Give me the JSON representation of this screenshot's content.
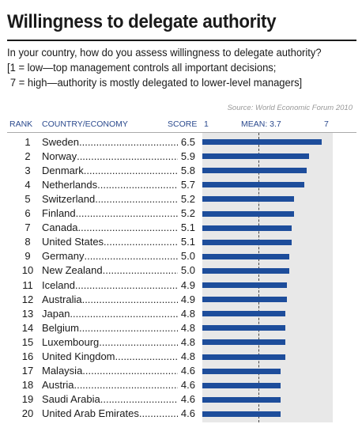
{
  "title": "Willingness to delegate authority",
  "question": [
    "In your country, how do you assess willingness to delegate authority?",
    "[1 = low—top management controls all important decisions;",
    "7 = high—authority is mostly delegated to lower-level managers]"
  ],
  "source": "Source: World Economic Forum 2010",
  "headers": {
    "rank": "RANK",
    "country": "COUNTRY/ECONOMY",
    "score": "SCORE",
    "min": "1",
    "mean": "MEAN: 3.7",
    "max": "7"
  },
  "colors": {
    "bar": "#1d4d9b",
    "panel": "#e8e8e8",
    "highlight": "#f5e100",
    "header": "#2b4a8e"
  },
  "chart_data": {
    "type": "bar",
    "orientation": "horizontal",
    "title": "Willingness to delegate authority",
    "xlim": [
      1,
      7
    ],
    "mean": 3.7,
    "categories": [
      "Sweden",
      "Norway",
      "Denmark",
      "Netherlands",
      "Switzerland",
      "Finland",
      "Canada",
      "United States",
      "Germany",
      "New Zealand",
      "Iceland",
      "Australia",
      "Japan",
      "Belgium",
      "Luxembourg",
      "United Kingdom",
      "Malaysia",
      "Austria",
      "Saudi Arabia",
      "United Arab Emirates"
    ],
    "ranks": [
      "1",
      "2",
      "3",
      "4",
      "5",
      "6",
      "7",
      "8",
      "9",
      "10",
      "11",
      "12",
      "13",
      "14",
      "15",
      "16",
      "17",
      "18",
      "19",
      "20"
    ],
    "values": [
      6.5,
      5.9,
      5.8,
      5.7,
      5.2,
      5.2,
      5.1,
      5.1,
      5.0,
      5.0,
      4.9,
      4.9,
      4.8,
      4.8,
      4.8,
      4.8,
      4.6,
      4.6,
      4.6,
      4.6
    ],
    "value_labels": [
      "6.5",
      "5.9",
      "5.8",
      "5.7",
      "5.2",
      "5.2",
      "5.1",
      "5.1",
      "5.0",
      "5.0",
      "4.9",
      "4.9",
      "4.8",
      "4.8",
      "4.8",
      "4.8",
      "4.6",
      "4.6",
      "4.6",
      "4.6"
    ],
    "highlighted": [
      true,
      true,
      true,
      true,
      true,
      true,
      true,
      true,
      true,
      true,
      true,
      true,
      false,
      true,
      true,
      true,
      false,
      true,
      false,
      false
    ]
  }
}
